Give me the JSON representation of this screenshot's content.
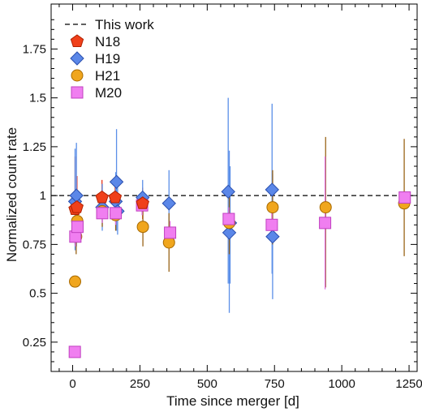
{
  "chart_data": {
    "type": "scatter",
    "xlabel": "Time since merger [d]",
    "ylabel": "Normalized count rate",
    "xlim": [
      -80,
      1280
    ],
    "ylim": [
      0.1,
      1.98
    ],
    "xticks": [
      0,
      250,
      500,
      750,
      1000,
      1250
    ],
    "xtick_labels": [
      "0",
      "250",
      "500",
      "750",
      "1000",
      "1250"
    ],
    "yticks": [
      0.25,
      0.5,
      0.75,
      1,
      1.25,
      1.5,
      1.75
    ],
    "ytick_labels": [
      "0.25",
      "0.5",
      "0.75",
      "1",
      "1.25",
      "1.5",
      "1.75"
    ],
    "grid": false,
    "legend_position": "top-left",
    "reference_line": {
      "name": "This work",
      "y": 1.0,
      "style": "dashed",
      "color": "#000000"
    },
    "series": [
      {
        "name": "N18",
        "marker": "pentagon",
        "color": "#f0401a",
        "edge": "#b02000",
        "points": [
          {
            "x": 9,
            "y": 0.93,
            "lo": 0.75,
            "hi": 1.2
          },
          {
            "x": 16,
            "y": 0.94,
            "lo": 0.8,
            "hi": 1.1
          },
          {
            "x": 109,
            "y": 0.99,
            "lo": 0.9,
            "hi": 1.08
          },
          {
            "x": 158,
            "y": 0.99,
            "lo": 0.92,
            "hi": 1.07
          },
          {
            "x": 260,
            "y": 0.96,
            "lo": 0.88,
            "hi": 1.04
          }
        ]
      },
      {
        "name": "H19",
        "marker": "diamond",
        "color": "#5b87e8",
        "edge": "#2a4fae",
        "points": [
          {
            "x": 9,
            "y": 0.97,
            "lo": 0.72,
            "hi": 1.24
          },
          {
            "x": 14,
            "y": 1.0,
            "lo": 0.74,
            "hi": 1.27
          },
          {
            "x": 110,
            "y": 0.94,
            "lo": 0.82,
            "hi": 1.06
          },
          {
            "x": 160,
            "y": 0.97,
            "lo": 0.82,
            "hi": 1.12
          },
          {
            "x": 163,
            "y": 1.07,
            "lo": 0.82,
            "hi": 1.34
          },
          {
            "x": 167,
            "y": 0.92,
            "lo": 0.8,
            "hi": 1.04
          },
          {
            "x": 260,
            "y": 0.99,
            "lo": 0.9,
            "hi": 1.08
          },
          {
            "x": 358,
            "y": 0.96,
            "lo": 0.79,
            "hi": 1.13
          },
          {
            "x": 578,
            "y": 1.02,
            "lo": 0.55,
            "hi": 1.5
          },
          {
            "x": 582,
            "y": 0.81,
            "lo": 0.4,
            "hi": 1.23
          },
          {
            "x": 585,
            "y": 0.86,
            "lo": 0.55,
            "hi": 1.15
          },
          {
            "x": 741,
            "y": 1.03,
            "lo": 0.6,
            "hi": 1.47
          },
          {
            "x": 743,
            "y": 0.79,
            "lo": 0.47,
            "hi": 1.11
          }
        ]
      },
      {
        "name": "H21",
        "marker": "circle",
        "color": "#f0a61e",
        "edge": "#a86a00",
        "points": [
          {
            "x": 9,
            "y": 0.56,
            "lo": 0.56,
            "hi": 0.56
          },
          {
            "x": 13,
            "y": 0.79,
            "lo": 0.7,
            "hi": 0.88
          },
          {
            "x": 17,
            "y": 0.87,
            "lo": 0.78,
            "hi": 0.96
          },
          {
            "x": 110,
            "y": 0.92,
            "lo": 0.84,
            "hi": 1.0
          },
          {
            "x": 160,
            "y": 0.9,
            "lo": 0.82,
            "hi": 0.98
          },
          {
            "x": 261,
            "y": 0.84,
            "lo": 0.74,
            "hi": 0.94
          },
          {
            "x": 358,
            "y": 0.76,
            "lo": 0.61,
            "hi": 0.91
          },
          {
            "x": 582,
            "y": 0.86,
            "lo": 0.7,
            "hi": 1.02
          },
          {
            "x": 743,
            "y": 0.94,
            "lo": 0.75,
            "hi": 1.13
          },
          {
            "x": 940,
            "y": 0.94,
            "lo": 0.53,
            "hi": 1.3
          },
          {
            "x": 1232,
            "y": 0.96,
            "lo": 0.69,
            "hi": 1.29
          }
        ]
      },
      {
        "name": "M20",
        "marker": "square",
        "color": "#f07ef0",
        "edge": "#c040c0",
        "points": [
          {
            "x": 8,
            "y": 0.2,
            "lo": 0.2,
            "hi": 0.2
          },
          {
            "x": 10,
            "y": 0.79,
            "lo": 0.74,
            "hi": 0.84
          },
          {
            "x": 18,
            "y": 0.84,
            "lo": 0.78,
            "hi": 0.9
          },
          {
            "x": 110,
            "y": 0.91,
            "lo": 0.86,
            "hi": 0.96
          },
          {
            "x": 160,
            "y": 0.91,
            "lo": 0.85,
            "hi": 0.97
          },
          {
            "x": 258,
            "y": 0.95,
            "lo": 0.9,
            "hi": 1.0
          },
          {
            "x": 362,
            "y": 0.81,
            "lo": 0.75,
            "hi": 0.87
          },
          {
            "x": 580,
            "y": 0.88,
            "lo": 0.82,
            "hi": 0.94
          },
          {
            "x": 740,
            "y": 0.85,
            "lo": 0.79,
            "hi": 0.91
          },
          {
            "x": 938,
            "y": 0.86,
            "lo": 0.52,
            "hi": 1.2
          },
          {
            "x": 1234,
            "y": 0.99,
            "lo": 0.97,
            "hi": 1.01
          }
        ]
      }
    ]
  }
}
